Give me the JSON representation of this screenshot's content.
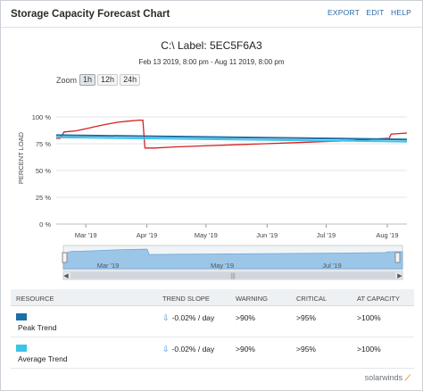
{
  "header": {
    "title": "Storage Capacity Forecast Chart",
    "links": [
      "EXPORT",
      "EDIT",
      "HELP"
    ]
  },
  "chart": {
    "title": "C:\\ Label: 5EC5F6A3",
    "subtitle": "Feb 13 2019, 8:00 pm - Aug 11 2019, 8:00 pm",
    "zoom_label": "Zoom",
    "zoom_options": [
      "1h",
      "12h",
      "24h"
    ],
    "zoom_active": "1h",
    "navigator_labels": [
      "Mar '19",
      "May '19",
      "Jul '19"
    ]
  },
  "chart_data": {
    "type": "line",
    "ylabel": "PERCENT LOAD",
    "xlabel": "",
    "ylim": [
      0,
      120
    ],
    "y_ticks": [
      "0 %",
      "25 %",
      "50 %",
      "75 %",
      "100 %"
    ],
    "x_ticks": [
      "Mar '19",
      "Apr '19",
      "May '19",
      "Jun '19",
      "Jul '19",
      "Aug '19"
    ],
    "x_range": [
      "2019-02-14",
      "2019-08-11"
    ],
    "series": [
      {
        "name": "",
        "color": "#d62020",
        "points": [
          [
            "2019-02-14",
            80
          ],
          [
            "2019-02-16",
            80
          ],
          [
            "2019-02-18",
            86
          ],
          [
            "2019-02-24",
            87
          ],
          [
            "2019-03-01",
            89
          ],
          [
            "2019-03-06",
            91
          ],
          [
            "2019-03-11",
            93
          ],
          [
            "2019-03-17",
            95
          ],
          [
            "2019-03-22",
            96
          ],
          [
            "2019-03-28",
            97
          ],
          [
            "2019-03-30",
            97
          ],
          [
            "2019-03-31",
            71
          ],
          [
            "2019-04-05",
            71
          ],
          [
            "2019-04-15",
            72
          ],
          [
            "2019-04-30",
            73
          ],
          [
            "2019-05-15",
            74
          ],
          [
            "2019-05-31",
            75
          ],
          [
            "2019-06-15",
            76
          ],
          [
            "2019-06-30",
            77
          ],
          [
            "2019-07-15",
            78
          ],
          [
            "2019-07-31",
            80
          ],
          [
            "2019-08-02",
            80
          ],
          [
            "2019-08-03",
            84
          ],
          [
            "2019-08-11",
            85
          ]
        ]
      },
      {
        "name": "Peak Trend",
        "color": "#1e6fa8",
        "points": [
          [
            "2019-02-14",
            83
          ],
          [
            "2019-08-11",
            79
          ]
        ]
      },
      {
        "name": "Average Trend",
        "color": "#3cc4e8",
        "points": [
          [
            "2019-02-14",
            81
          ],
          [
            "2019-08-11",
            77
          ]
        ]
      }
    ],
    "grid": true
  },
  "table": {
    "headers": [
      "RESOURCE",
      "TREND SLOPE",
      "WARNING",
      "CRITICAL",
      "AT CAPACITY"
    ],
    "rows": [
      {
        "resource": "Peak Trend",
        "color": "#1e6fa8",
        "slope": "-0.02% / day",
        "warning": ">90%",
        "critical": ">95%",
        "capacity": ">100%"
      },
      {
        "resource": "Average Trend",
        "color": "#3cc4e8",
        "slope": "-0.02% / day",
        "warning": ">90%",
        "critical": ">95%",
        "capacity": ">100%"
      }
    ]
  },
  "footer": {
    "logo_text": "solarwinds"
  }
}
